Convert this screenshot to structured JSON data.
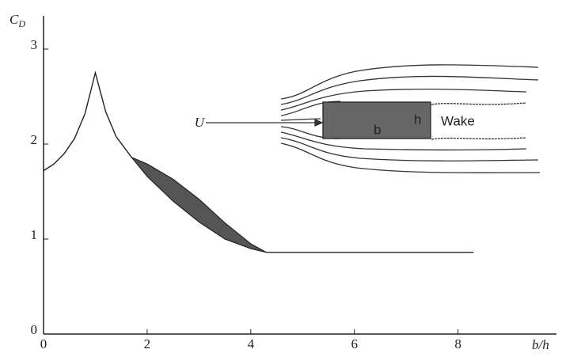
{
  "chart_data": {
    "type": "line",
    "ylabel": "C",
    "ylabel_sub": "D",
    "xlabel": "b/h",
    "xlim": [
      0,
      9.9
    ],
    "ylim": [
      0,
      3.3
    ],
    "xticks": [
      0,
      2,
      4,
      6,
      8
    ],
    "yticks": [
      0,
      1,
      2,
      3
    ],
    "color": "#222222",
    "series": [
      {
        "x": [
          0,
          0.2,
          0.4,
          0.6,
          0.8,
          1.0,
          1.2,
          1.4,
          1.7
        ],
        "values": [
          1.72,
          1.79,
          1.9,
          2.06,
          2.32,
          2.75,
          2.34,
          2.08,
          1.86
        ]
      },
      {
        "x": [
          4.3,
          8.3
        ],
        "values": [
          0.86,
          0.86
        ]
      }
    ],
    "band": {
      "color": "#555555",
      "x": [
        1.7,
        2,
        2.5,
        3,
        3.5,
        4,
        4.3
      ],
      "upper": [
        1.86,
        1.79,
        1.63,
        1.42,
        1.17,
        0.95,
        0.86
      ],
      "lower": [
        1.86,
        1.66,
        1.4,
        1.18,
        1.0,
        0.9,
        0.86
      ]
    },
    "annotations": {
      "velocity": "U",
      "wake": "Wake",
      "length": "b",
      "height": "h"
    }
  }
}
